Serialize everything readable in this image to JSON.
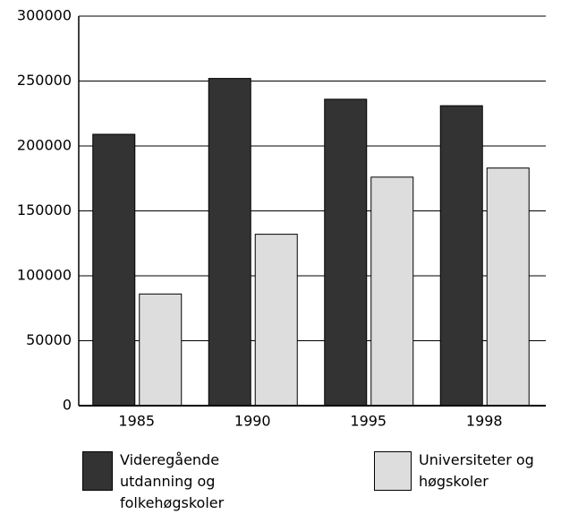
{
  "chart_data": {
    "type": "bar",
    "categories": [
      "1985",
      "1990",
      "1995",
      "1998"
    ],
    "series": [
      {
        "name": "Videregående utdanning og folkehøgskoler",
        "color": "#333333",
        "values": [
          209000,
          252000,
          236000,
          231000
        ]
      },
      {
        "name": "Universiteter og høgskoler",
        "color": "#dddddd",
        "values": [
          86000,
          132000,
          176000,
          183000
        ]
      }
    ],
    "ylim": [
      0,
      300000
    ],
    "yticks": [
      0,
      50000,
      100000,
      150000,
      200000,
      250000,
      300000
    ],
    "grid": true
  }
}
